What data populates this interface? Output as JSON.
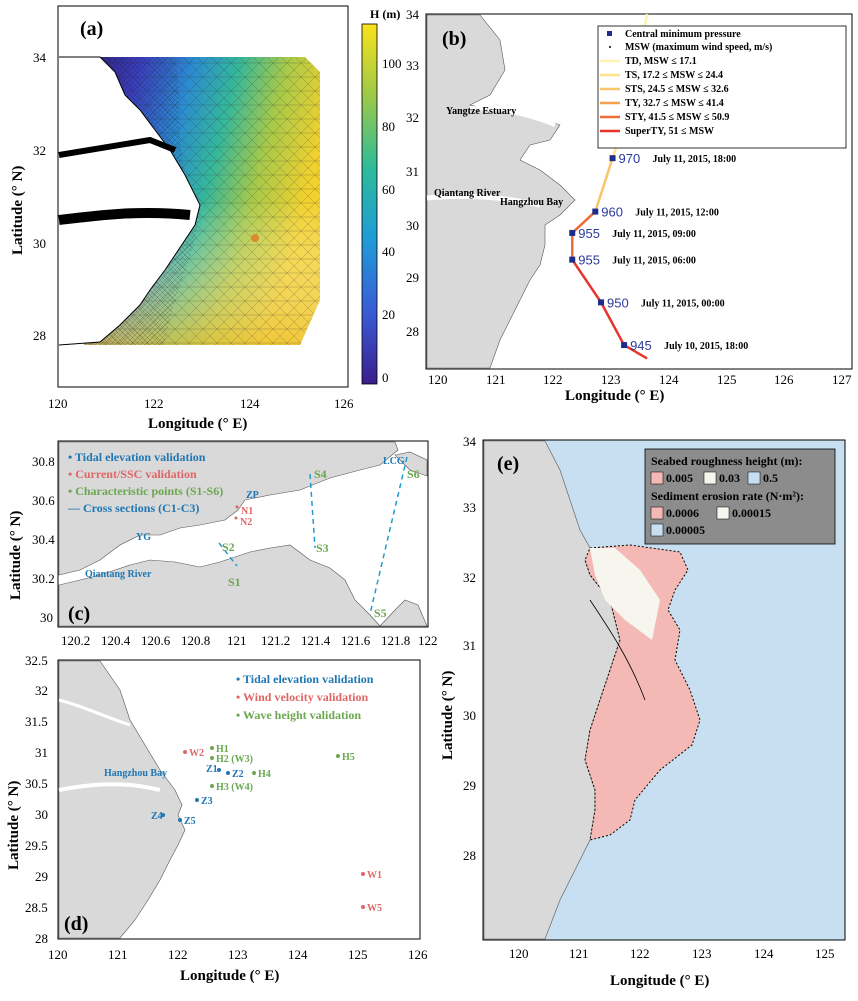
{
  "panel_a": {
    "label": "(a)",
    "colorbar_title": "H (m)",
    "colorbar_ticks": [
      "0",
      "20",
      "40",
      "60",
      "80",
      "100"
    ],
    "yticks": [
      "34",
      "32",
      "30",
      "28"
    ],
    "xticks": [
      "120",
      "122",
      "124",
      "126"
    ],
    "ylabel": "Latitude (° N)",
    "xlabel": "Longitude (° E)"
  },
  "panel_b": {
    "label": "(b)",
    "yticks": [
      "34",
      "33",
      "32",
      "31",
      "30",
      "29",
      "28"
    ],
    "xticks": [
      "120",
      "121",
      "122",
      "123",
      "124",
      "125",
      "126",
      "127"
    ],
    "xlabel": "Longitude (° E)",
    "places": {
      "estuary": "Yangtze Estuary",
      "river": "Qiantang River",
      "bay": "Hangzhou Bay"
    },
    "legend": [
      "Central minimum pressure",
      "MSW (maximum wind speed, m/s)",
      "TD, MSW ≤ 17.1",
      "TS, 17.2 ≤ MSW ≤ 24.4",
      "STS, 24.5 ≤ MSW ≤ 32.6",
      "TY, 32.7 ≤ MSW ≤ 41.4",
      "STY, 41.5 ≤ MSW ≤ 50.9",
      "SuperTY, 51 ≤ MSW"
    ],
    "legend_colors": [
      "#fff3b0",
      "#fde48a",
      "#f9c46b",
      "#f5a050",
      "#f06a3a",
      "#e8342a"
    ],
    "track": [
      {
        "p": "945",
        "t": "July 10, 2015, 18:00",
        "lon": 123.3,
        "lat": 27.8
      },
      {
        "p": "950",
        "t": "July 11, 2015, 00:00",
        "lon": 122.9,
        "lat": 28.6
      },
      {
        "p": "955",
        "t": "July 11, 2015, 06:00",
        "lon": 122.4,
        "lat": 29.4
      },
      {
        "p": "955",
        "t": "July 11, 2015, 09:00",
        "lon": 122.4,
        "lat": 29.9
      },
      {
        "p": "960",
        "t": "July 11, 2015, 12:00",
        "lon": 122.8,
        "lat": 30.3
      },
      {
        "p": "970",
        "t": "July 11, 2015, 18:00",
        "lon": 123.1,
        "lat": 31.3
      }
    ]
  },
  "panel_c": {
    "label": "(c)",
    "ylabel": "Latitude (° N)",
    "yticks": [
      "30.8",
      "30.6",
      "30.4",
      "30.2",
      "30"
    ],
    "xticks": [
      "120.2",
      "120.4",
      "120.6",
      "120.8",
      "121",
      "121.2",
      "121.4",
      "121.6",
      "121.8",
      "122"
    ],
    "legend": [
      {
        "text": "• Tidal elevation validation",
        "color": "#1f77b4"
      },
      {
        "text": "• Current/SSC validation",
        "color": "#e06666"
      },
      {
        "text": "• Characteristic points (S1-S6)",
        "color": "#6aa84f"
      },
      {
        "text": "— Cross sections (C1-C3)",
        "color": "#1f77b4"
      }
    ],
    "river": "Qiantang River",
    "stations_blue": [
      "YG",
      "ZP",
      "LCG"
    ],
    "stations_red": [
      "N1",
      "N2"
    ],
    "stations_green": [
      "S1",
      "S2",
      "S3",
      "S4",
      "S5",
      "S6"
    ]
  },
  "panel_d": {
    "label": "(d)",
    "ylabel": "Latitude (° N)",
    "xlabel": "Longitude (° E)",
    "yticks": [
      "32.5",
      "32",
      "31.5",
      "31",
      "30.5",
      "30",
      "29.5",
      "29",
      "28.5",
      "28"
    ],
    "xticks": [
      "120",
      "121",
      "122",
      "123",
      "124",
      "125",
      "126"
    ],
    "legend": [
      {
        "text": "• Tidal elevation validation",
        "color": "#1f77b4"
      },
      {
        "text": "• Wind velocity validation",
        "color": "#e06666"
      },
      {
        "text": "• Wave height validation",
        "color": "#6aa84f"
      }
    ],
    "bay": "Hangzhou Bay",
    "stations": [
      "W2",
      "H1",
      "H2 (W3)",
      "Z1",
      "Z2",
      "H4",
      "H3 (W4)",
      "H5",
      "Z3",
      "Z4",
      "Z5",
      "W1",
      "W5"
    ]
  },
  "panel_e": {
    "label": "(e)",
    "ylabel": "Latitude (° N)",
    "xlabel": "Longitude (° E)",
    "yticks": [
      "34",
      "33",
      "32",
      "31",
      "30",
      "29",
      "28"
    ],
    "xticks": [
      "120",
      "121",
      "122",
      "123",
      "124",
      "125"
    ],
    "legend_title1": "Seabed roughness height (m):",
    "rough": [
      "0.005",
      "0.03",
      "0.5"
    ],
    "legend_title2": "Sediment erosion rate (N·m²):",
    "erosion": [
      "0.0006",
      "0.00015",
      "0.00005"
    ],
    "colors": {
      "pink": "#f4b9b4",
      "white": "#f6f6ee",
      "blue": "#c7dff0"
    }
  }
}
